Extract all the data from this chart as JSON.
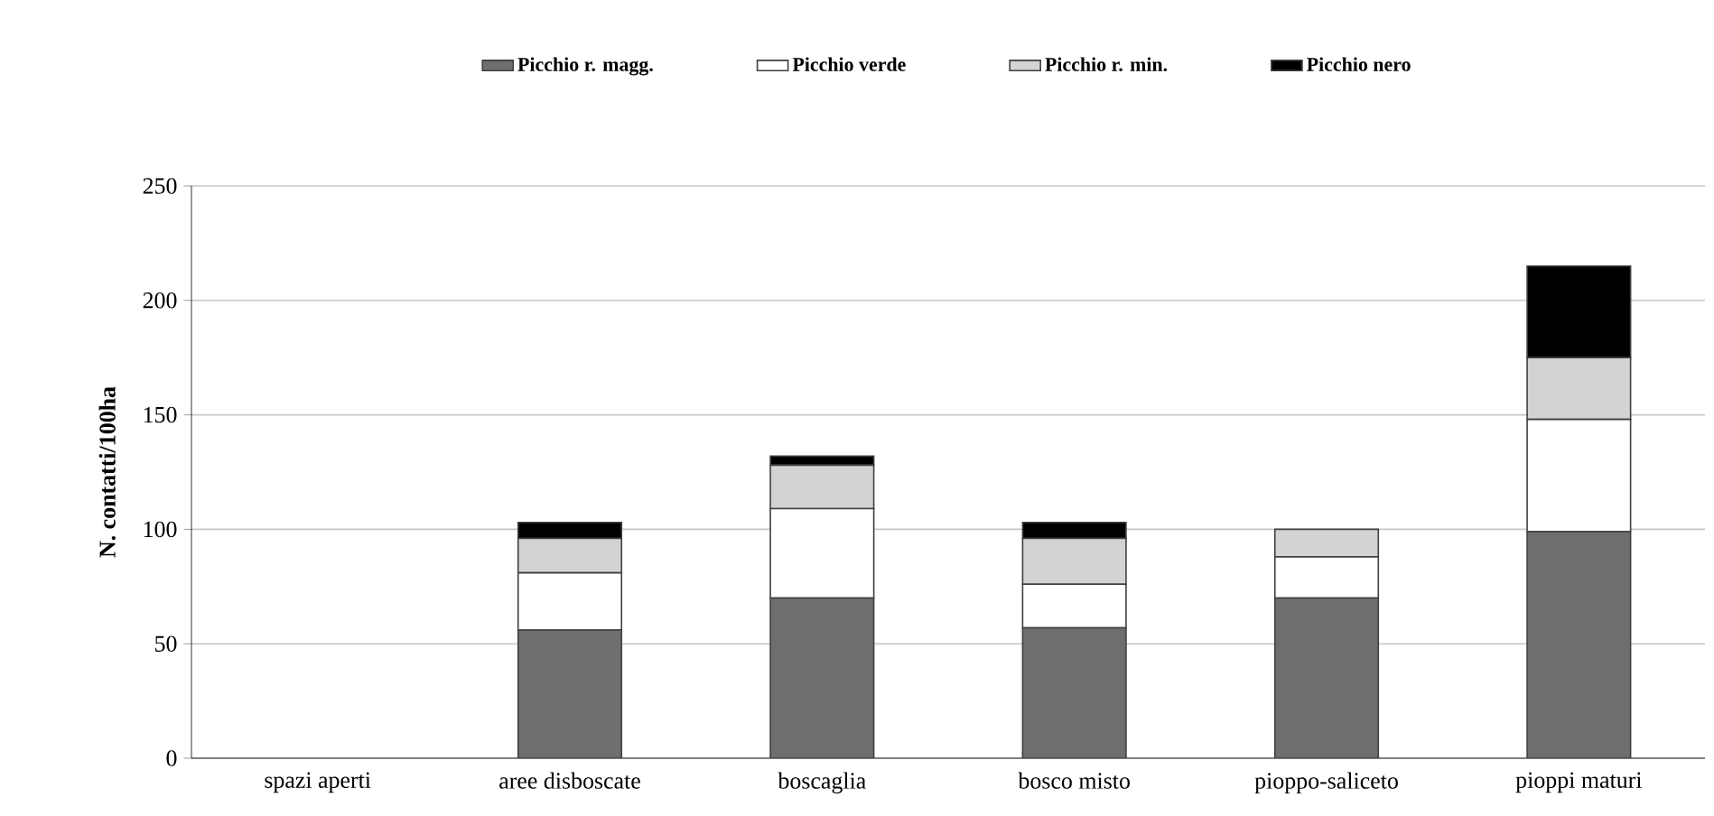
{
  "chart_data": {
    "type": "bar",
    "stacked": true,
    "ylabel": "N. contatti/100ha",
    "categories": [
      "spazi aperti",
      "aree disboscate",
      "boscaglia",
      "bosco misto",
      "pioppo-saliceto",
      "pioppi maturi"
    ],
    "series": [
      {
        "name": "Picchio r. magg.",
        "color": "#6e6e6e",
        "values": [
          0,
          56,
          70,
          57,
          70,
          99
        ]
      },
      {
        "name": "Picchio verde",
        "color": "#ffffff",
        "values": [
          0,
          25,
          39,
          19,
          18,
          49
        ]
      },
      {
        "name": "Picchio r. min.",
        "color": "#d3d3d3",
        "values": [
          0,
          15,
          19,
          20,
          12,
          27
        ]
      },
      {
        "name": "Picchio nero",
        "color": "#000000",
        "values": [
          0,
          7,
          4,
          7,
          0,
          40
        ]
      }
    ],
    "ylim": [
      0,
      250
    ],
    "yticks": [
      0,
      50,
      100,
      150,
      200,
      250
    ],
    "grid": "y",
    "legend": "top"
  }
}
